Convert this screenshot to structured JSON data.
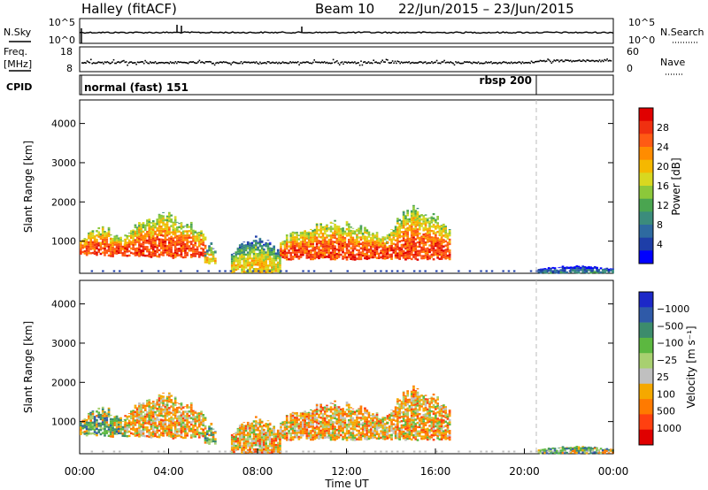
{
  "header": {
    "station": "Halley (fitACF)",
    "beam": "Beam 10",
    "dates": "22/Jun/2015 – 23/Jun/2015"
  },
  "sky_panel": {
    "left_label": "N.Sky",
    "left_ticks": [
      "10^5",
      "10^0"
    ],
    "right_label": "N.Search",
    "right_ticks": [
      "10^5",
      "10^0"
    ]
  },
  "freq_panel": {
    "left_label_1": "Freq.",
    "left_label_2": "[MHz]",
    "left_ticks": [
      "18",
      "8"
    ],
    "right_label": "Nave",
    "right_ticks": [
      "60",
      "0"
    ]
  },
  "cpid_panel": {
    "label": "CPID",
    "segments": [
      {
        "text": "normal (fast) 151",
        "start_hour": 0
      },
      {
        "text": "rbsp 200",
        "start_hour": 20.6
      }
    ]
  },
  "chart_data": [
    {
      "type": "heatmap",
      "quantity": "Power",
      "ylabel": "Slant Range [km]",
      "xlabel": "",
      "ylim": [
        180,
        4600
      ],
      "yticks": [
        1000,
        2000,
        3000,
        4000
      ],
      "xlim_hours": [
        0,
        24
      ],
      "colorbar": {
        "label": "Power [dB]",
        "ticks": [
          "4",
          "8",
          "12",
          "16",
          "20",
          "24",
          "28"
        ],
        "range": [
          0,
          32
        ],
        "colors": [
          "#0000ff",
          "#1e3ea8",
          "#2e6aa0",
          "#3b8c7c",
          "#4aa550",
          "#8cc83a",
          "#d8d820",
          "#f5b800",
          "#ff8c00",
          "#ff5a14",
          "#f03010",
          "#e00000"
        ]
      },
      "echo_regions": [
        {
          "start": 0.0,
          "end": 2.0,
          "low_km": 650,
          "high_km": 1350,
          "level": "high"
        },
        {
          "start": 2.0,
          "end": 5.6,
          "low_km": 600,
          "high_km": 1700,
          "level": "high"
        },
        {
          "start": 5.6,
          "end": 6.1,
          "low_km": 450,
          "high_km": 950,
          "level": "mid"
        },
        {
          "start": 6.8,
          "end": 9.0,
          "low_km": 200,
          "high_km": 1100,
          "level": "mid"
        },
        {
          "start": 9.0,
          "end": 13.8,
          "low_km": 550,
          "high_km": 1500,
          "level": "high"
        },
        {
          "start": 13.8,
          "end": 16.6,
          "low_km": 550,
          "high_km": 1900,
          "level": "high"
        },
        {
          "start": 20.6,
          "end": 24.0,
          "low_km": 180,
          "high_km": 380,
          "level": "low"
        }
      ]
    },
    {
      "type": "heatmap",
      "quantity": "Velocity",
      "ylabel": "Slant Range [km]",
      "xlabel": "Time UT",
      "ylim": [
        180,
        4600
      ],
      "yticks": [
        1000,
        2000,
        3000,
        4000
      ],
      "xlim_hours": [
        0,
        24
      ],
      "xticks": [
        "00:00",
        "04:00",
        "08:00",
        "12:00",
        "16:00",
        "20:00",
        "00:00"
      ],
      "colorbar": {
        "label": "Velocity [m s⁻¹]",
        "ticks": [
          "−1000",
          "−500",
          "−100",
          "−25",
          "25",
          "100",
          "500",
          "1000"
        ],
        "colors": [
          "#e00000",
          "#ff4010",
          "#ff7a00",
          "#f5a800",
          "#c0c0c0",
          "#a8d070",
          "#5cb840",
          "#3c8c6c",
          "#2f5aa8",
          "#1c28c8"
        ]
      },
      "echo_regions": [
        {
          "start": 0.0,
          "end": 2.0,
          "low_km": 650,
          "high_km": 1350,
          "sign": "toward"
        },
        {
          "start": 2.0,
          "end": 5.6,
          "low_km": 600,
          "high_km": 1700,
          "sign": "away"
        },
        {
          "start": 5.6,
          "end": 6.1,
          "low_km": 450,
          "high_km": 950,
          "sign": "toward"
        },
        {
          "start": 6.8,
          "end": 9.0,
          "low_km": 200,
          "high_km": 1100,
          "sign": "away"
        },
        {
          "start": 9.0,
          "end": 13.8,
          "low_km": 550,
          "high_km": 1500,
          "sign": "away"
        },
        {
          "start": 13.8,
          "end": 16.6,
          "low_km": 550,
          "high_km": 1900,
          "sign": "away"
        },
        {
          "start": 20.6,
          "end": 24.0,
          "low_km": 180,
          "high_km": 380,
          "sign": "toward"
        }
      ]
    }
  ]
}
